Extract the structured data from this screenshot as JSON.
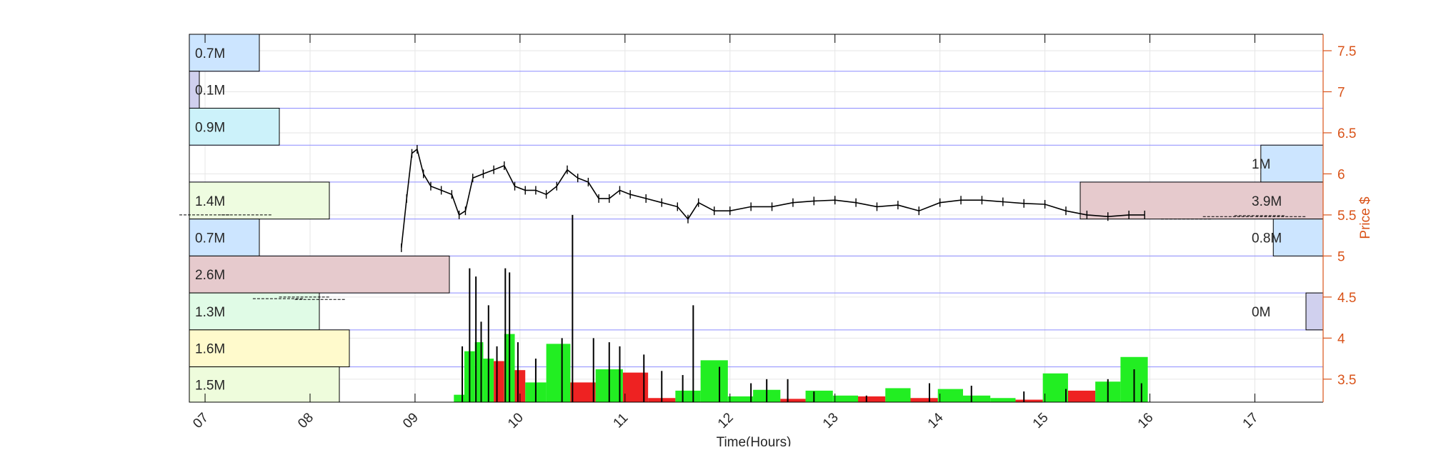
{
  "chart_data": {
    "type": "candlestick-volume-profile",
    "xlabel": "Time(Hours)",
    "ylabel": "Price $",
    "x_ticks": [
      "07",
      "08",
      "09",
      "10",
      "11",
      "12",
      "13",
      "14",
      "15",
      "16",
      "17"
    ],
    "xlim": [
      6.85,
      17.65
    ],
    "y_ticks": [
      "3.5",
      "4",
      "4.5",
      "5",
      "5.5",
      "6",
      "6.5",
      "7",
      "7.5"
    ],
    "ylim": [
      3.22,
      7.7
    ],
    "grid": true,
    "colors": {
      "axis": "#000000",
      "right_axis": "#D95319",
      "grid": "#e6e6e6",
      "bin_lines": "#8c8cff",
      "price": "#000000",
      "volume_up": "#22ee22",
      "volume_down": "#ee2222"
    },
    "left_profile": [
      {
        "low": 7.25,
        "high": 7.7,
        "value": 0.7,
        "label": "0.7M",
        "color": "#cce5ff"
      },
      {
        "low": 6.8,
        "high": 7.25,
        "value": 0.1,
        "label": "0.1M",
        "color": "#d0d0ee"
      },
      {
        "low": 6.35,
        "high": 6.8,
        "value": 0.9,
        "label": "0.9M",
        "color": "#ccf2fa"
      },
      {
        "low": 5.9,
        "high": 6.35,
        "value": 0,
        "label": "",
        "color": "#ffffff"
      },
      {
        "low": 5.45,
        "high": 5.9,
        "value": 1.4,
        "label": "1.4M",
        "color": "#eefce0"
      },
      {
        "low": 5.0,
        "high": 5.45,
        "value": 0.7,
        "label": "0.7M",
        "color": "#cce5ff"
      },
      {
        "low": 4.55,
        "high": 5.0,
        "value": 2.6,
        "label": "2.6M",
        "color": "#e6cacd"
      },
      {
        "low": 4.1,
        "high": 4.55,
        "value": 1.3,
        "label": "1.3M",
        "color": "#e0fbe6"
      },
      {
        "low": 3.65,
        "high": 4.1,
        "value": 1.6,
        "label": "1.6M",
        "color": "#fffacc"
      },
      {
        "low": 3.2,
        "high": 3.65,
        "value": 1.5,
        "label": "1.5M",
        "color": "#eefcdc"
      }
    ],
    "right_profile": [
      {
        "low": 5.9,
        "high": 6.35,
        "value": 1.0,
        "label": "1M",
        "color": "#cce5ff"
      },
      {
        "low": 5.45,
        "high": 5.9,
        "value": 3.9,
        "label": "3.9M",
        "color": "#e6cacd"
      },
      {
        "low": 5.0,
        "high": 5.45,
        "value": 0.8,
        "label": "0.8M",
        "color": "#cce5ff"
      },
      {
        "low": 4.1,
        "high": 4.55,
        "value": 0.1,
        "label": "0M",
        "color": "#d0d0ee"
      }
    ],
    "price_series": [
      [
        8.87,
        5.1
      ],
      [
        8.92,
        5.7
      ],
      [
        8.97,
        6.25
      ],
      [
        9.02,
        6.3
      ],
      [
        9.08,
        6.0
      ],
      [
        9.15,
        5.85
      ],
      [
        9.25,
        5.8
      ],
      [
        9.35,
        5.75
      ],
      [
        9.42,
        5.5
      ],
      [
        9.48,
        5.55
      ],
      [
        9.55,
        5.95
      ],
      [
        9.65,
        6.0
      ],
      [
        9.75,
        6.05
      ],
      [
        9.85,
        6.1
      ],
      [
        9.95,
        5.85
      ],
      [
        10.05,
        5.8
      ],
      [
        10.15,
        5.8
      ],
      [
        10.25,
        5.75
      ],
      [
        10.35,
        5.85
      ],
      [
        10.45,
        6.05
      ],
      [
        10.55,
        5.95
      ],
      [
        10.65,
        5.9
      ],
      [
        10.75,
        5.7
      ],
      [
        10.85,
        5.7
      ],
      [
        10.95,
        5.8
      ],
      [
        11.05,
        5.75
      ],
      [
        11.2,
        5.7
      ],
      [
        11.35,
        5.65
      ],
      [
        11.5,
        5.6
      ],
      [
        11.6,
        5.45
      ],
      [
        11.7,
        5.65
      ],
      [
        11.85,
        5.55
      ],
      [
        12.0,
        5.55
      ],
      [
        12.2,
        5.6
      ],
      [
        12.4,
        5.6
      ],
      [
        12.6,
        5.65
      ],
      [
        12.8,
        5.67
      ],
      [
        13.0,
        5.68
      ],
      [
        13.2,
        5.65
      ],
      [
        13.4,
        5.6
      ],
      [
        13.6,
        5.62
      ],
      [
        13.8,
        5.55
      ],
      [
        14.0,
        5.65
      ],
      [
        14.2,
        5.68
      ],
      [
        14.4,
        5.68
      ],
      [
        14.6,
        5.66
      ],
      [
        14.8,
        5.64
      ],
      [
        15.0,
        5.63
      ],
      [
        15.2,
        5.55
      ],
      [
        15.4,
        5.5
      ],
      [
        15.6,
        5.48
      ],
      [
        15.8,
        5.5
      ],
      [
        15.95,
        5.5
      ]
    ],
    "volume_bars": [
      {
        "start": 9.37,
        "end": 9.47,
        "height": 3.31,
        "dir": "up"
      },
      {
        "start": 9.47,
        "end": 9.57,
        "height": 3.84,
        "dir": "up"
      },
      {
        "start": 9.57,
        "end": 9.65,
        "height": 3.95,
        "dir": "up"
      },
      {
        "start": 9.65,
        "end": 9.75,
        "height": 3.75,
        "dir": "up"
      },
      {
        "start": 9.75,
        "end": 9.85,
        "height": 3.72,
        "dir": "down"
      },
      {
        "start": 9.85,
        "end": 9.95,
        "height": 4.05,
        "dir": "up"
      },
      {
        "start": 9.95,
        "end": 10.05,
        "height": 3.61,
        "dir": "down"
      },
      {
        "start": 10.05,
        "end": 10.25,
        "height": 3.46,
        "dir": "up"
      },
      {
        "start": 10.25,
        "end": 10.48,
        "height": 3.93,
        "dir": "up"
      },
      {
        "start": 10.48,
        "end": 10.72,
        "height": 3.46,
        "dir": "down"
      },
      {
        "start": 10.72,
        "end": 10.98,
        "height": 3.62,
        "dir": "up"
      },
      {
        "start": 10.98,
        "end": 11.22,
        "height": 3.58,
        "dir": "down"
      },
      {
        "start": 11.22,
        "end": 11.48,
        "height": 3.27,
        "dir": "down"
      },
      {
        "start": 11.48,
        "end": 11.72,
        "height": 3.36,
        "dir": "up"
      },
      {
        "start": 11.72,
        "end": 11.98,
        "height": 3.73,
        "dir": "up"
      },
      {
        "start": 11.98,
        "end": 12.22,
        "height": 3.29,
        "dir": "up"
      },
      {
        "start": 12.22,
        "end": 12.48,
        "height": 3.37,
        "dir": "up"
      },
      {
        "start": 12.48,
        "end": 12.72,
        "height": 3.26,
        "dir": "down"
      },
      {
        "start": 12.72,
        "end": 12.98,
        "height": 3.36,
        "dir": "up"
      },
      {
        "start": 12.98,
        "end": 13.22,
        "height": 3.3,
        "dir": "up"
      },
      {
        "start": 13.22,
        "end": 13.48,
        "height": 3.29,
        "dir": "down"
      },
      {
        "start": 13.48,
        "end": 13.72,
        "height": 3.39,
        "dir": "up"
      },
      {
        "start": 13.72,
        "end": 13.98,
        "height": 3.27,
        "dir": "down"
      },
      {
        "start": 13.98,
        "end": 14.22,
        "height": 3.38,
        "dir": "up"
      },
      {
        "start": 14.22,
        "end": 14.48,
        "height": 3.3,
        "dir": "up"
      },
      {
        "start": 14.48,
        "end": 14.72,
        "height": 3.27,
        "dir": "up"
      },
      {
        "start": 14.72,
        "end": 14.98,
        "height": 3.25,
        "dir": "down"
      },
      {
        "start": 14.98,
        "end": 15.22,
        "height": 3.57,
        "dir": "up"
      },
      {
        "start": 15.22,
        "end": 15.48,
        "height": 3.36,
        "dir": "down"
      },
      {
        "start": 15.48,
        "end": 15.72,
        "height": 3.47,
        "dir": "up"
      },
      {
        "start": 15.72,
        "end": 15.98,
        "height": 3.77,
        "dir": "up"
      }
    ],
    "volume_spikes": [
      [
        9.45,
        3.9
      ],
      [
        9.52,
        4.85
      ],
      [
        9.58,
        4.75
      ],
      [
        9.63,
        4.2
      ],
      [
        9.7,
        4.4
      ],
      [
        9.78,
        3.9
      ],
      [
        9.86,
        4.85
      ],
      [
        9.9,
        4.8
      ],
      [
        9.98,
        3.95
      ],
      [
        10.15,
        3.75
      ],
      [
        10.4,
        4.0
      ],
      [
        10.5,
        5.5
      ],
      [
        10.7,
        4.0
      ],
      [
        10.85,
        3.95
      ],
      [
        10.95,
        3.9
      ],
      [
        11.18,
        3.8
      ],
      [
        11.35,
        3.6
      ],
      [
        11.55,
        3.55
      ],
      [
        11.65,
        4.4
      ],
      [
        11.9,
        3.65
      ],
      [
        12.2,
        3.45
      ],
      [
        12.35,
        3.5
      ],
      [
        12.55,
        3.5
      ],
      [
        12.8,
        3.35
      ],
      [
        13.3,
        3.3
      ],
      [
        13.9,
        3.45
      ],
      [
        14.3,
        3.42
      ],
      [
        14.8,
        3.35
      ],
      [
        15.2,
        3.38
      ],
      [
        15.6,
        3.5
      ],
      [
        15.85,
        3.62
      ],
      [
        15.92,
        3.45
      ]
    ],
    "pre_market_ticks": [
      [
        7.7,
        4.48
      ],
      [
        7.95,
        4.5
      ],
      [
        8.1,
        4.47
      ],
      [
        7.0,
        5.5
      ],
      [
        7.4,
        5.5
      ]
    ],
    "after_hours_ticks": [
      [
        16.35,
        5.45
      ],
      [
        16.75,
        5.48
      ],
      [
        17.05,
        5.49
      ],
      [
        17.25,
        5.48
      ]
    ]
  }
}
